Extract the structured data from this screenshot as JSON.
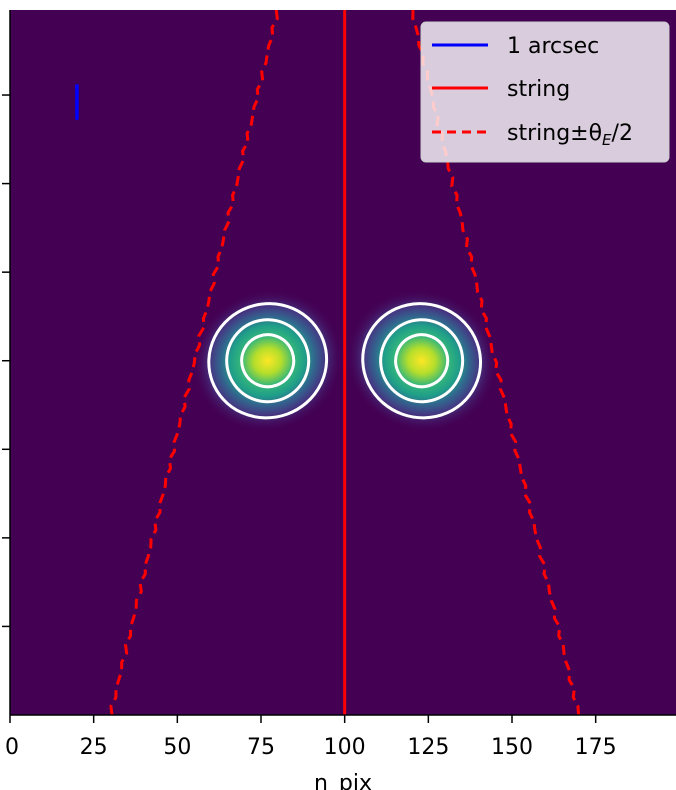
{
  "chart_data": {
    "type": "heatmap",
    "colors": {
      "background": "#440154",
      "string": "#ff0000",
      "scale_bar": "#0000ff",
      "contour": "#ffffff"
    },
    "x": {
      "label": "n_pix",
      "range": [
        0,
        199
      ],
      "ticks": [
        0,
        25,
        50,
        75,
        100,
        125,
        150,
        175
      ],
      "tick_labels": [
        "0",
        "25",
        "50",
        "75",
        "100",
        "125",
        "150",
        "175"
      ]
    },
    "y": {
      "range": [
        0,
        199
      ],
      "ticks": [
        25,
        50,
        75,
        100,
        125,
        150,
        175
      ]
    },
    "images": [
      {
        "name": "image-left",
        "x": 77,
        "y": 100,
        "contour_levels": 3
      },
      {
        "name": "image-right",
        "x": 123,
        "y": 100,
        "contour_levels": 3
      }
    ],
    "string": {
      "x": 100
    },
    "string_band": {
      "top_half_width": 20,
      "bottom_half_width": 70
    },
    "scale_bar": {
      "x": 20,
      "y_from": 168,
      "y_to": 178
    },
    "legend": {
      "position": "top-right",
      "entries": [
        {
          "label": "1 arcsec",
          "style": "solid",
          "color": "#0000ff"
        },
        {
          "label": "string",
          "style": "solid",
          "color": "#ff0000"
        },
        {
          "label": "string±θ",
          "sub": "E",
          "suffix": "/2",
          "style": "dashed",
          "color": "#ff0000"
        }
      ]
    }
  }
}
